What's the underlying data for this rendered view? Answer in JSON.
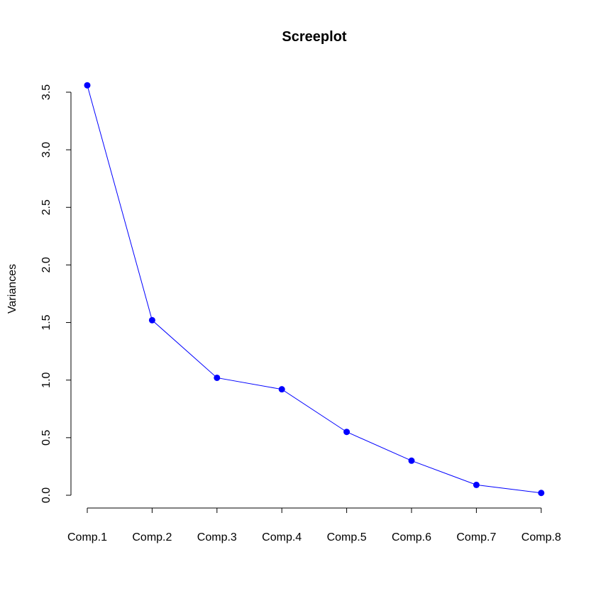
{
  "chart_data": {
    "type": "line",
    "title": "Screeplot",
    "xlabel": "",
    "ylabel": "Variances",
    "categories": [
      "Comp.1",
      "Comp.2",
      "Comp.3",
      "Comp.4",
      "Comp.5",
      "Comp.6",
      "Comp.7",
      "Comp.8"
    ],
    "values": [
      3.56,
      1.52,
      1.02,
      0.92,
      0.55,
      0.3,
      0.09,
      0.02
    ],
    "ylim": [
      0,
      3.5
    ],
    "yticks": [
      "0.0",
      "0.5",
      "1.0",
      "1.5",
      "2.0",
      "2.5",
      "3.0",
      "3.5"
    ],
    "grid": false,
    "legend": "none",
    "series_color": "#0000ff",
    "marker": "filled-circle"
  }
}
